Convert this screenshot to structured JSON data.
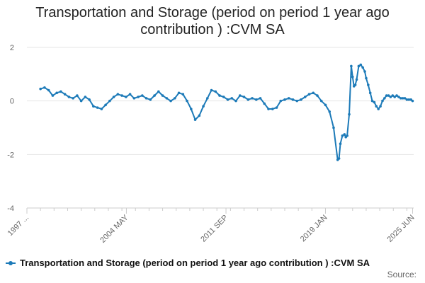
{
  "colors": {
    "series": "#1c7ab8",
    "grid": "#e6e6e6",
    "axis": "#cccccc",
    "text": "#666666"
  },
  "legend": {
    "label": "Transportation and Storage (period on period 1 year ago contribution ) :CVM SA"
  },
  "source": {
    "label": "Source:"
  },
  "chart_data": {
    "type": "line",
    "title": "Transportation and Storage (period on period 1 year ago contribution ) :CVM SA",
    "title_lines": [
      "Transportation and Storage (period on period 1 year ago",
      "contribution ) :CVM SA"
    ],
    "xlabel": "",
    "ylabel": "",
    "ylim": [
      -4,
      2
    ],
    "yticks": [
      2,
      0,
      -2,
      -4
    ],
    "xlim": [
      1997.0,
      2025.5
    ],
    "xtick_labels": [
      {
        "x": 1997.0,
        "label": "1997 ..."
      },
      {
        "x": 2004.33,
        "label": "2004 MAY"
      },
      {
        "x": 2011.67,
        "label": "2011 SEP"
      },
      {
        "x": 2019.0,
        "label": "2019 JAN"
      },
      {
        "x": 2025.42,
        "label": "2025 JUN"
      }
    ],
    "grid": true,
    "legend_position": "bottom",
    "series": [
      {
        "name": "Transportation and Storage (period on period 1 year ago contribution ) :CVM SA",
        "x": [
          1998.0,
          1998.3,
          1998.6,
          1998.9,
          1999.2,
          1999.5,
          1999.8,
          2000.1,
          2000.4,
          2000.7,
          2001.0,
          2001.3,
          2001.6,
          2001.9,
          2002.2,
          2002.5,
          2002.8,
          2003.1,
          2003.4,
          2003.7,
          2004.0,
          2004.3,
          2004.6,
          2004.9,
          2005.2,
          2005.5,
          2005.8,
          2006.1,
          2006.4,
          2006.7,
          2007.0,
          2007.3,
          2007.6,
          2007.9,
          2008.2,
          2008.5,
          2008.8,
          2009.1,
          2009.4,
          2009.7,
          2010.0,
          2010.3,
          2010.6,
          2010.9,
          2011.2,
          2011.5,
          2011.8,
          2012.1,
          2012.4,
          2012.7,
          2013.0,
          2013.3,
          2013.6,
          2013.9,
          2014.2,
          2014.5,
          2014.8,
          2015.1,
          2015.4,
          2015.7,
          2016.0,
          2016.3,
          2016.6,
          2016.9,
          2017.2,
          2017.5,
          2017.8,
          2018.1,
          2018.4,
          2018.7,
          2019.0,
          2019.3,
          2019.6,
          2019.9,
          2020.0,
          2020.1,
          2020.25,
          2020.4,
          2020.5,
          2020.6,
          2020.75,
          2020.9,
          2021.0,
          2021.1,
          2021.2,
          2021.3,
          2021.45,
          2021.6,
          2021.75,
          2021.9,
          2022.0,
          2022.15,
          2022.3,
          2022.45,
          2022.6,
          2022.75,
          2022.9,
          2023.05,
          2023.2,
          2023.35,
          2023.5,
          2023.65,
          2023.8,
          2023.95,
          2024.1,
          2024.25,
          2024.4,
          2024.55,
          2024.7,
          2024.85,
          2025.0,
          2025.15,
          2025.3,
          2025.42
        ],
        "y": [
          0.45,
          0.5,
          0.4,
          0.2,
          0.3,
          0.35,
          0.25,
          0.15,
          0.1,
          0.2,
          0.0,
          0.15,
          0.05,
          -0.2,
          -0.25,
          -0.3,
          -0.15,
          0.0,
          0.15,
          0.25,
          0.2,
          0.15,
          0.25,
          0.1,
          0.15,
          0.2,
          0.1,
          0.05,
          0.2,
          0.35,
          0.2,
          0.1,
          0.0,
          0.1,
          0.3,
          0.25,
          0.0,
          -0.3,
          -0.7,
          -0.55,
          -0.2,
          0.1,
          0.4,
          0.35,
          0.2,
          0.15,
          0.05,
          0.1,
          0.0,
          0.2,
          0.15,
          0.05,
          0.1,
          0.05,
          0.1,
          -0.1,
          -0.3,
          -0.3,
          -0.25,
          0.0,
          0.05,
          0.1,
          0.05,
          0.0,
          0.05,
          0.15,
          0.25,
          0.3,
          0.2,
          0.0,
          -0.15,
          -0.4,
          -1.0,
          -2.2,
          -2.15,
          -1.6,
          -1.3,
          -1.25,
          -1.35,
          -1.3,
          -0.5,
          1.3,
          0.9,
          0.55,
          0.6,
          0.8,
          1.3,
          1.35,
          1.25,
          1.1,
          0.85,
          0.6,
          0.3,
          0.0,
          -0.05,
          -0.2,
          -0.3,
          -0.2,
          0.0,
          0.1,
          0.2,
          0.2,
          0.15,
          0.2,
          0.15,
          0.2,
          0.15,
          0.1,
          0.1,
          0.1,
          0.05,
          0.05,
          0.05,
          0.0
        ]
      }
    ]
  }
}
